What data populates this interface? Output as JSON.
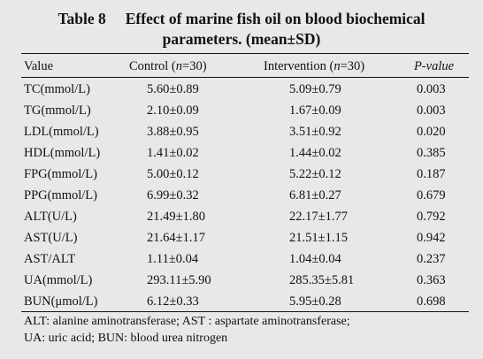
{
  "table": {
    "number": "Table 8",
    "title_line1": "Effect of marine fish oil on blood biochemical",
    "title_line2": "parameters. (mean±SD)",
    "headers": {
      "value": "Value",
      "control_prefix": "Control (",
      "control_n": "n",
      "control_suffix": "=30)",
      "intervention_prefix": "Intervention (",
      "intervention_n": "n",
      "intervention_suffix": "=30)",
      "pvalue": "P-value"
    },
    "rows": [
      {
        "value": "TC(mmol/L)",
        "control": "5.60±0.89",
        "intervention": "5.09±0.79",
        "p": "0.003"
      },
      {
        "value": "TG(mmol/L)",
        "control": "2.10±0.09",
        "intervention": "1.67±0.09",
        "p": "0.003"
      },
      {
        "value": "LDL(mmol/L)",
        "control": "3.88±0.95",
        "intervention": "3.51±0.92",
        "p": "0.020"
      },
      {
        "value": "HDL(mmol/L)",
        "control": "1.41±0.02",
        "intervention": "1.44±0.02",
        "p": "0.385"
      },
      {
        "value": "FPG(mmol/L)",
        "control": "5.00±0.12",
        "intervention": "5.22±0.12",
        "p": "0.187"
      },
      {
        "value": "PPG(mmol/L)",
        "control": "6.99±0.32",
        "intervention": "6.81±0.27",
        "p": "0.679"
      },
      {
        "value": "ALT(U/L)",
        "control": "21.49±1.80",
        "intervention": "22.17±1.77",
        "p": "0.792"
      },
      {
        "value": "AST(U/L)",
        "control": "21.64±1.17",
        "intervention": "21.51±1.15",
        "p": "0.942"
      },
      {
        "value": "AST/ALT",
        "control": "1.11±0.04",
        "intervention": "1.04±0.04",
        "p": "0.237"
      },
      {
        "value": "UA(mmol/L)",
        "control": "293.11±5.90",
        "intervention": "285.35±5.81",
        "p": "0.363"
      },
      {
        "value": "BUN(μmol/L)",
        "control": "6.12±0.33",
        "intervention": "5.95±0.28",
        "p": "0.698"
      }
    ],
    "footnote_line1": "ALT: alanine aminotransferase; AST : aspartate aminotransferase;",
    "footnote_line2": "UA: uric acid; BUN: blood urea nitrogen"
  }
}
